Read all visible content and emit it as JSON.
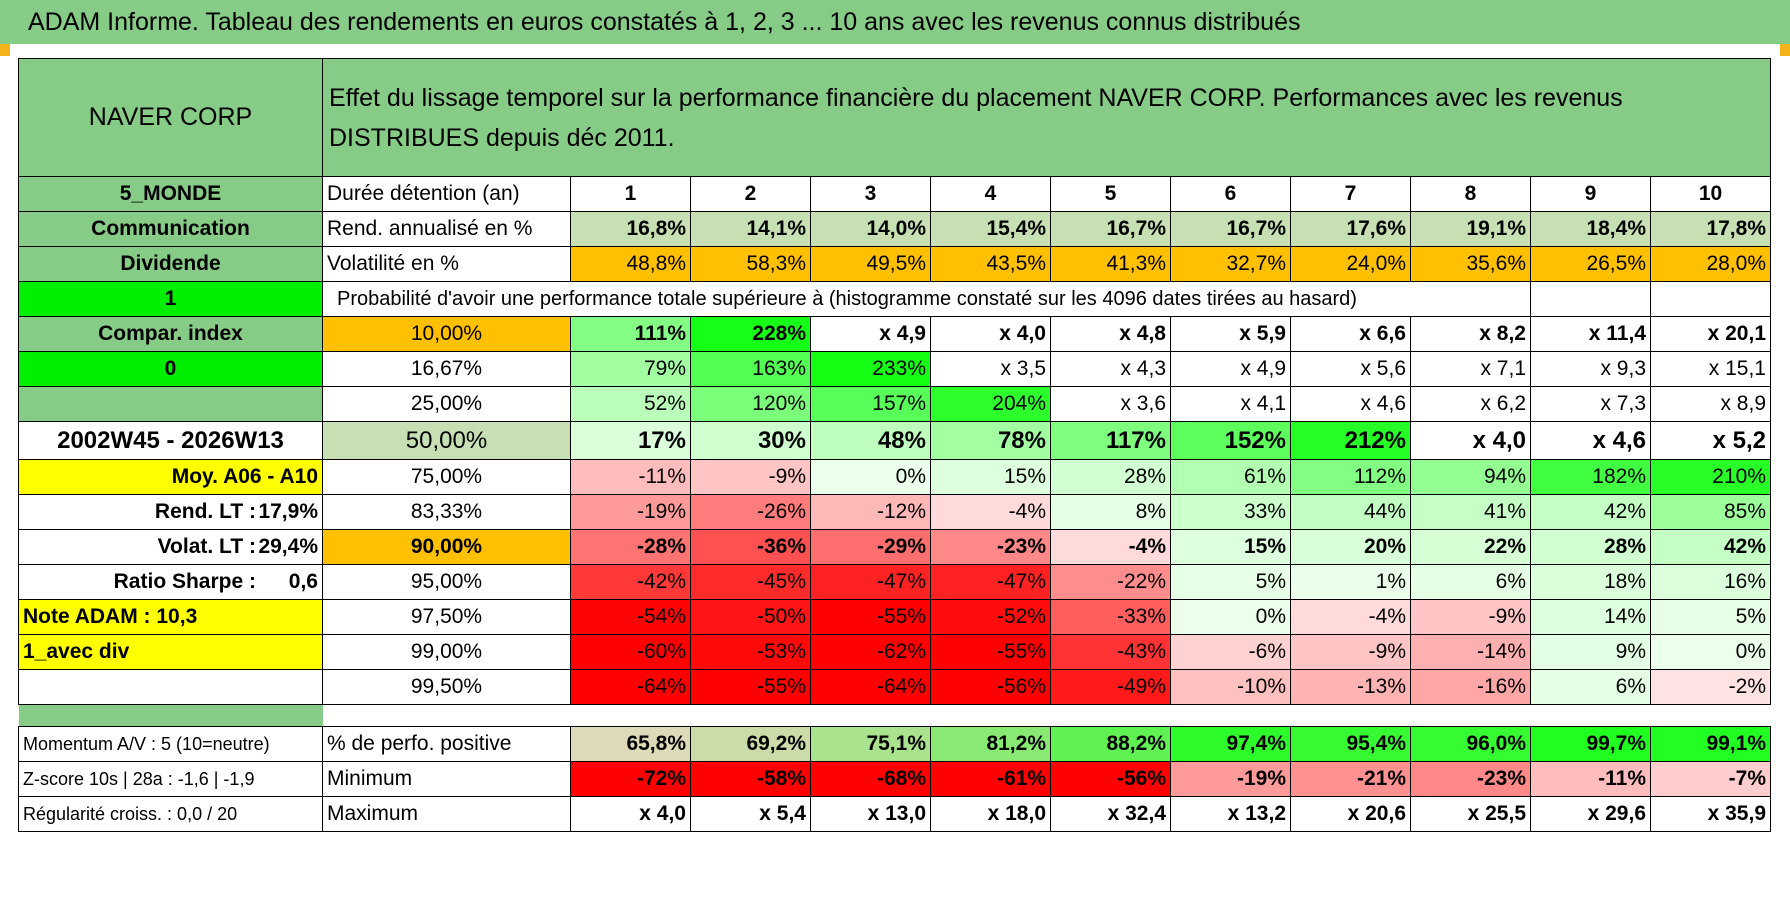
{
  "title": "ADAM Informe. Tableau des rendements en euros constatés à 1, 2, 3 ... 10 ans avec les revenus connus distribués",
  "header": {
    "name": "NAVER CORP",
    "description": "Effet du lissage temporel sur la performance financière du placement NAVER CORP. Performances avec les revenus DISTRIBUES depuis déc 2011."
  },
  "durations": [
    "1",
    "2",
    "3",
    "4",
    "5",
    "6",
    "7",
    "8",
    "9",
    "10"
  ],
  "rows": [
    {
      "left": "5_MONDE",
      "label": "Durée détention (an)",
      "type": "durations"
    },
    {
      "left": "Communication",
      "label": "Rend. annualisé en %",
      "values": [
        "16,8%",
        "14,1%",
        "14,0%",
        "15,4%",
        "16,7%",
        "16,7%",
        "17,6%",
        "19,1%",
        "18,4%",
        "17,8%"
      ]
    },
    {
      "left": "Dividende",
      "label": "Volatilité en %",
      "values": [
        "48,8%",
        "58,3%",
        "49,5%",
        "43,5%",
        "41,3%",
        "32,7%",
        "24,0%",
        "35,6%",
        "26,5%",
        "28,0%"
      ]
    },
    {
      "left": "1",
      "label": "Probabilité d'avoir une performance totale supérieure à (histogramme constaté sur les 4096 dates tirées au hasard)"
    },
    {
      "left": "Compar. index",
      "label": "10,00%",
      "values": [
        "111%",
        "228%",
        "x 4,9",
        "x 4,0",
        "x 4,8",
        "x 5,9",
        "x 6,6",
        "x 8,2",
        "x 11,4",
        "x 20,1"
      ]
    },
    {
      "left": "0",
      "label": "16,67%",
      "values": [
        "79%",
        "163%",
        "233%",
        "x 3,5",
        "x 4,3",
        "x 4,9",
        "x 5,6",
        "x 7,1",
        "x 9,3",
        "x 15,1"
      ]
    },
    {
      "left": "",
      "label": "25,00%",
      "values": [
        "52%",
        "120%",
        "157%",
        "204%",
        "x 3,6",
        "x 4,1",
        "x 4,6",
        "x 6,2",
        "x 7,3",
        "x 8,9"
      ]
    },
    {
      "left": "2002W45 - 2026W13",
      "label": "50,00%",
      "values": [
        "17%",
        "30%",
        "48%",
        "78%",
        "117%",
        "152%",
        "212%",
        "x 4,0",
        "x 4,6",
        "x 5,2"
      ]
    },
    {
      "left": "Moy. A06 - A10",
      "label": "75,00%",
      "values": [
        "-11%",
        "-9%",
        "0%",
        "15%",
        "28%",
        "61%",
        "112%",
        "94%",
        "182%",
        "210%"
      ]
    },
    {
      "left": "Rend. LT :",
      "left_value": "17,9%",
      "label": "83,33%",
      "values": [
        "-19%",
        "-26%",
        "-12%",
        "-4%",
        "8%",
        "33%",
        "44%",
        "41%",
        "42%",
        "85%"
      ]
    },
    {
      "left": "Volat. LT :",
      "left_value": "29,4%",
      "label": "90,00%",
      "values": [
        "-28%",
        "-36%",
        "-29%",
        "-23%",
        "-4%",
        "15%",
        "20%",
        "22%",
        "28%",
        "42%"
      ]
    },
    {
      "left": "Ratio Sharpe :",
      "left_value": "0,6",
      "label": "95,00%",
      "values": [
        "-42%",
        "-45%",
        "-47%",
        "-47%",
        "-22%",
        "5%",
        "1%",
        "6%",
        "18%",
        "16%"
      ]
    },
    {
      "left": "Note ADAM : 10,3",
      "label": "97,50%",
      "values": [
        "-54%",
        "-50%",
        "-55%",
        "-52%",
        "-33%",
        "0%",
        "-4%",
        "-9%",
        "14%",
        "5%"
      ]
    },
    {
      "left": "1_avec div",
      "label": "99,00%",
      "values": [
        "-60%",
        "-53%",
        "-62%",
        "-55%",
        "-43%",
        "-6%",
        "-9%",
        "-14%",
        "9%",
        "0%"
      ]
    },
    {
      "left": "",
      "label": "99,50%",
      "values": [
        "-64%",
        "-55%",
        "-64%",
        "-56%",
        "-49%",
        "-10%",
        "-13%",
        "-16%",
        "6%",
        "-2%"
      ]
    },
    {
      "left": "Momentum A/V : 5 (10=neutre)",
      "label": "% de perfo. positive",
      "values": [
        "65,8%",
        "69,2%",
        "75,1%",
        "81,2%",
        "88,2%",
        "97,4%",
        "95,4%",
        "96,0%",
        "99,7%",
        "99,1%"
      ]
    },
    {
      "left": "Z-score 10s | 28a : -1,6 | -1,9",
      "label": "Minimum",
      "values": [
        "-72%",
        "-58%",
        "-68%",
        "-61%",
        "-56%",
        "-19%",
        "-21%",
        "-23%",
        "-11%",
        "-7%"
      ]
    },
    {
      "left": "Régularité croiss. : 0,0 / 20",
      "label": "Maximum",
      "values": [
        "x 4,0",
        "x 5,4",
        "x 13,0",
        "x 18,0",
        "x 32,4",
        "x 13,2",
        "x 20,6",
        "x 25,5",
        "x 29,6",
        "x 35,9"
      ]
    }
  ],
  "colors": {
    "title_bg": "#86cc86",
    "label_green": "#86cc86",
    "highlight_yellow": "#ffff00",
    "highlight_orange": "#ffc000",
    "bright_green": "#00ee00",
    "red_text": "#e01010"
  }
}
